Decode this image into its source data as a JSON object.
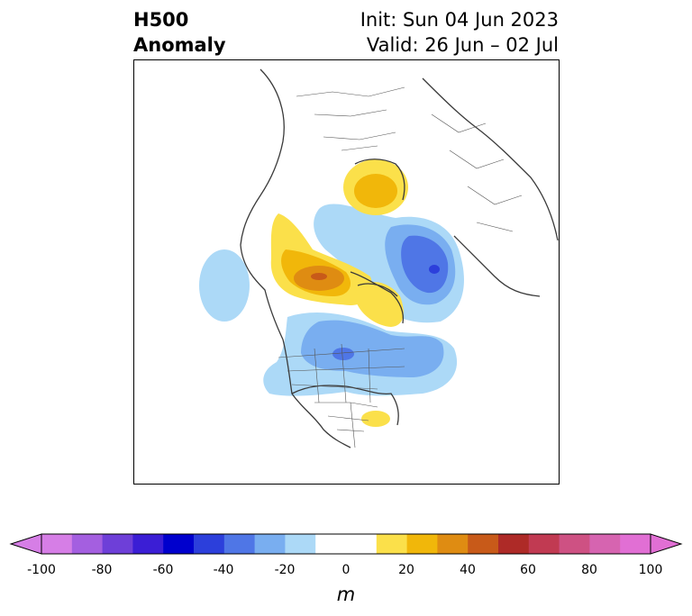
{
  "header": {
    "title_line1": "H500",
    "title_line2": "Anomaly",
    "init": "Init: Sun 04 Jun 2023",
    "valid": "Valid: 26 Jun – 02 Jul"
  },
  "colorbar": {
    "ticks": [
      "-100",
      "-80",
      "-60",
      "-40",
      "-20",
      "0",
      "20",
      "40",
      "60",
      "80",
      "100"
    ],
    "unit": "m",
    "colors": [
      "#d67ee6",
      "#a45fe0",
      "#6e3fd8",
      "#3b1ed5",
      "#0000cd",
      "#2c3fdb",
      "#4f76e6",
      "#79aef0",
      "#acd9f7",
      "#ffffff",
      "#ffffff",
      "#fbe04a",
      "#f1b70a",
      "#df8c12",
      "#c85a19",
      "#ae2a27",
      "#c13a52",
      "#ce5183",
      "#d664b0",
      "#e16fd4"
    ],
    "extend_low_color": "#d67ee6",
    "extend_high_color": "#e16fd4"
  },
  "map": {
    "colors": {
      "light_blue": "#acd9f7",
      "mid_blue": "#79aef0",
      "blue": "#4f76e6",
      "deep_blue": "#2c3fdb",
      "yellow": "#fbe04a",
      "gold": "#f1b70a",
      "orange": "#df8c12",
      "red_orange": "#c85a19",
      "coast": "#3a3a3a",
      "border": "#555555"
    }
  }
}
